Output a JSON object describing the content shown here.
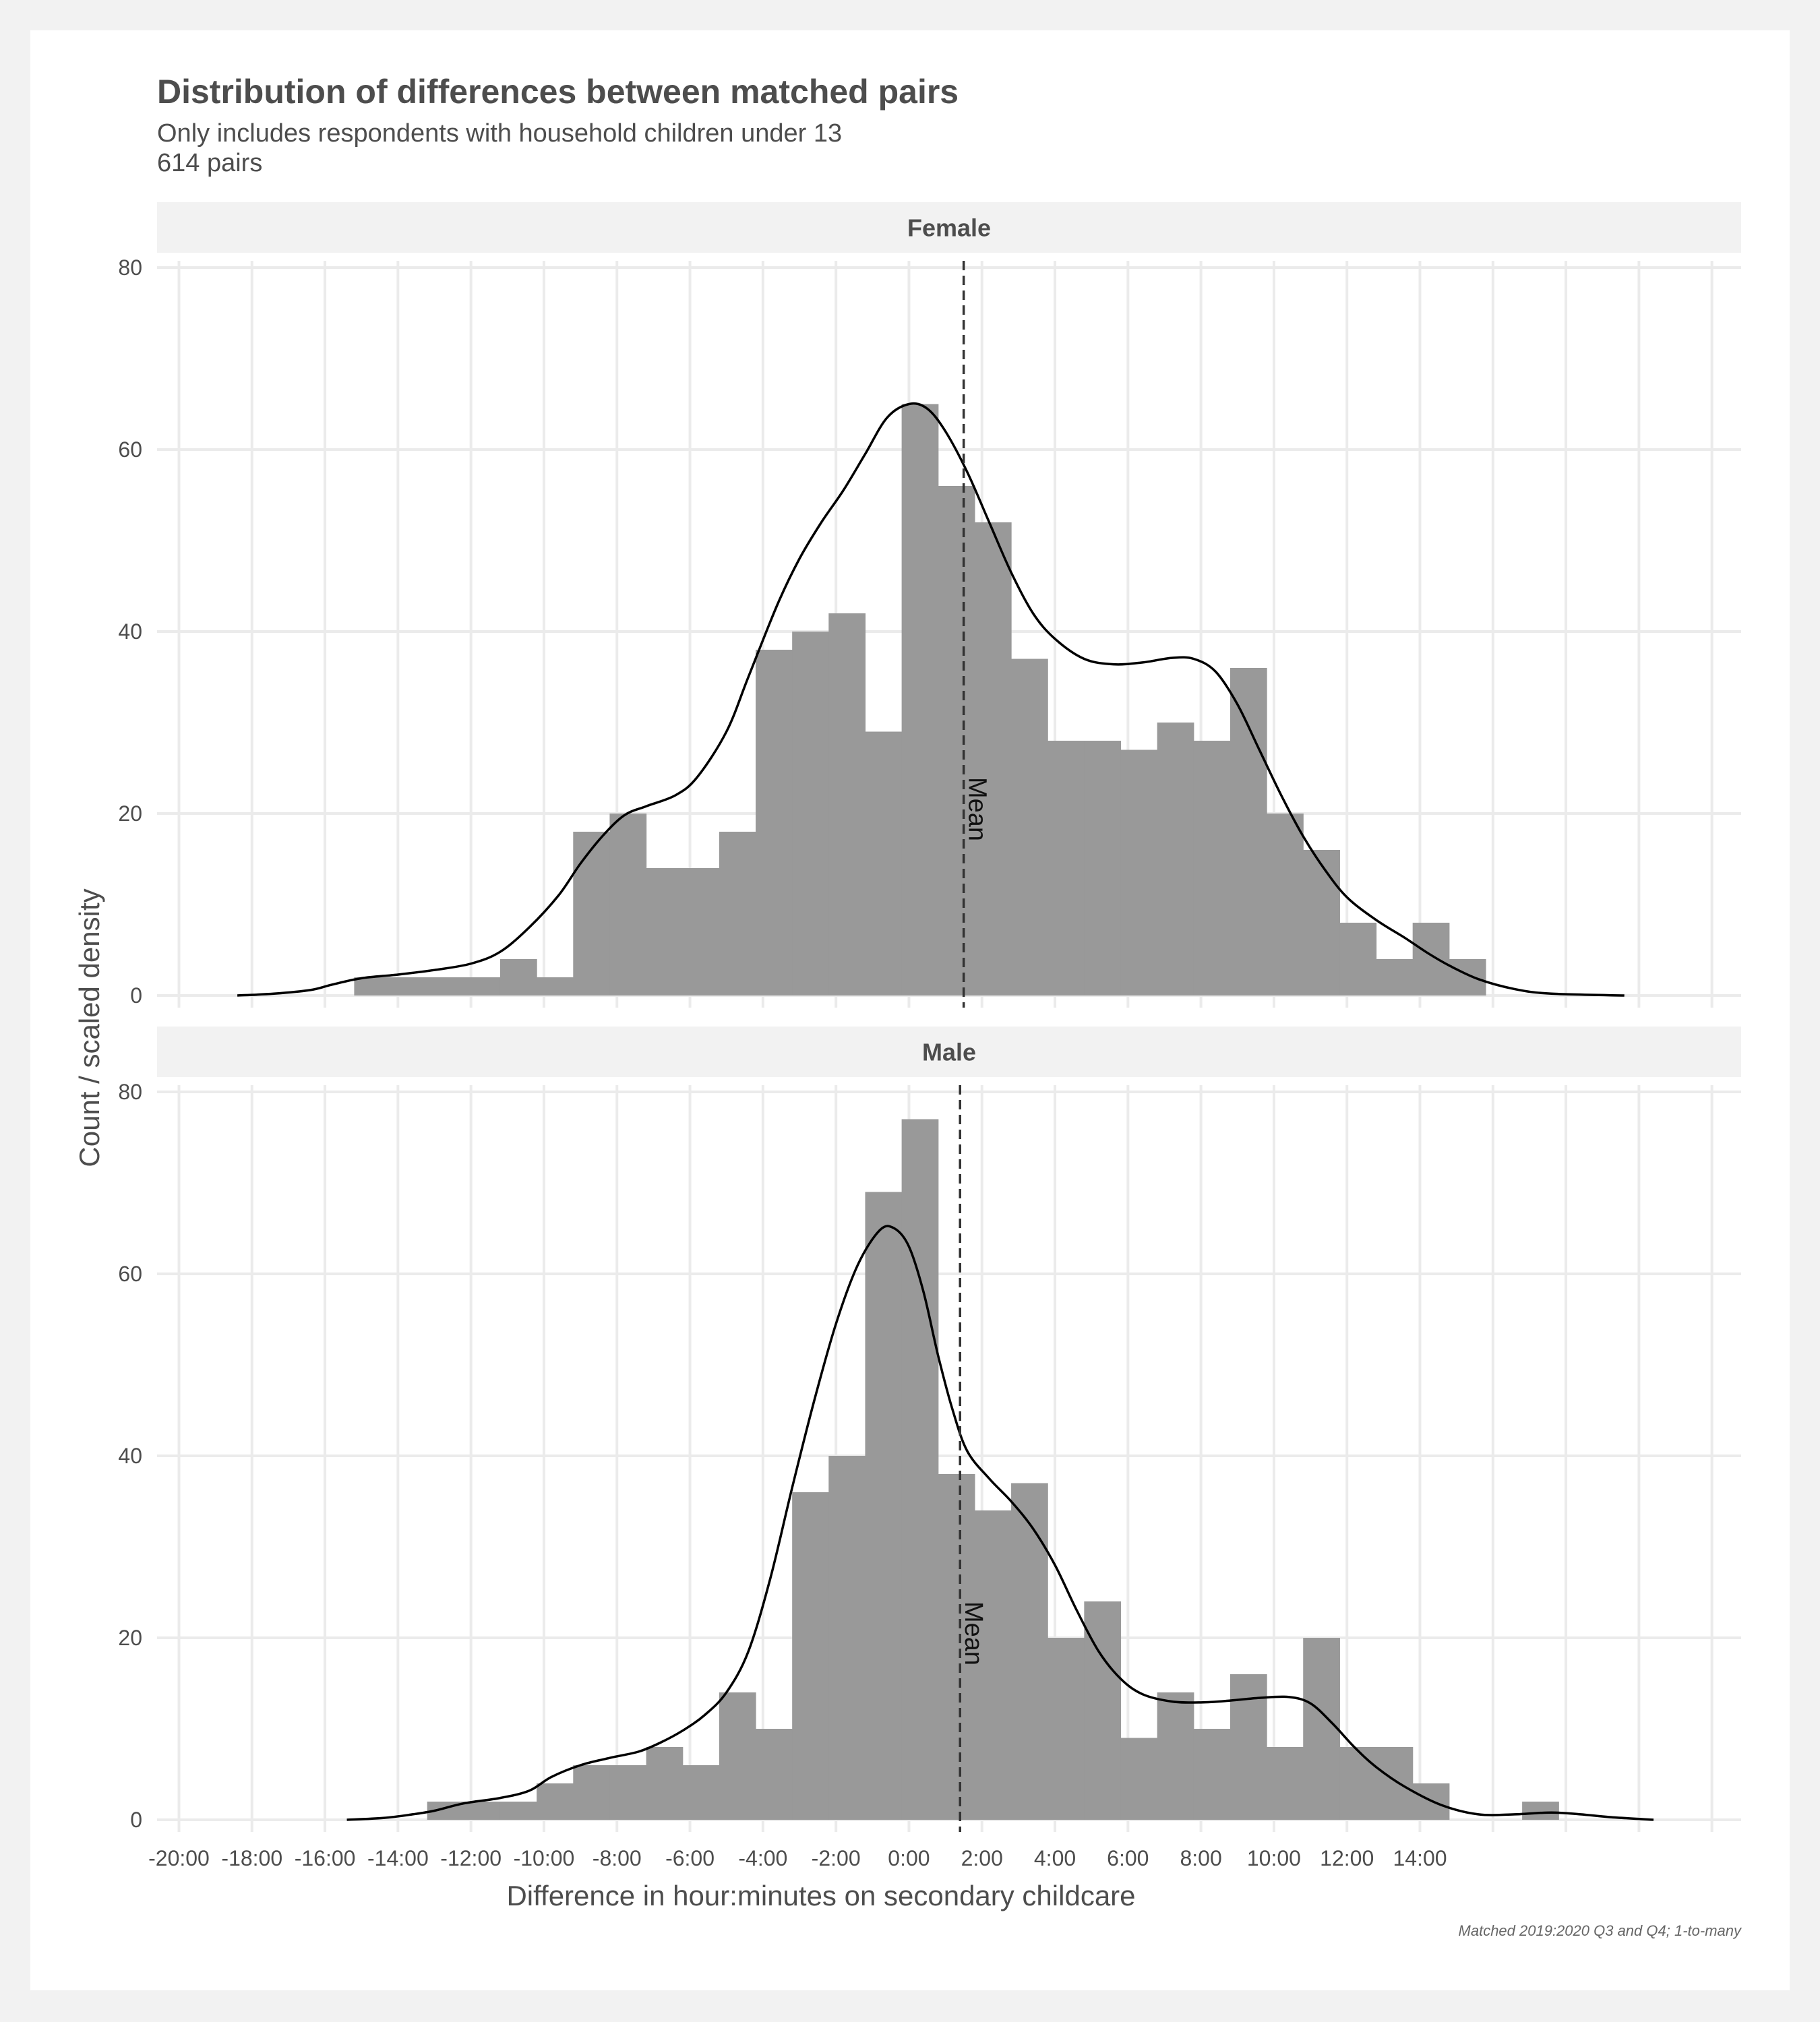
{
  "chart_data": {
    "type": "histogram",
    "title": "Distribution of differences between matched pairs",
    "subtitle_lines": [
      "Only includes respondents with household children under 13",
      "614 pairs"
    ],
    "xlabel": "Difference in hour:minutes on secondary childcare",
    "ylabel": "Count / scaled density",
    "caption": "Matched 2019:2020 Q3 and Q4; 1-to-many",
    "x_unit": "hours",
    "xlim": [
      -20.6,
      22.8
    ],
    "ylim": [
      0,
      80
    ],
    "y_ticks": [
      0,
      20,
      40,
      60,
      80
    ],
    "x_ticks": [
      {
        "value": -20,
        "label": "-20:00"
      },
      {
        "value": -18,
        "label": "-18:00"
      },
      {
        "value": -16,
        "label": "-16:00"
      },
      {
        "value": -14,
        "label": "-14:00"
      },
      {
        "value": -12,
        "label": "-12:00"
      },
      {
        "value": -10,
        "label": "-10:00"
      },
      {
        "value": -8,
        "label": "-8:00"
      },
      {
        "value": -6,
        "label": "-6:00"
      },
      {
        "value": -4,
        "label": "-4:00"
      },
      {
        "value": -2,
        "label": "-2:00"
      },
      {
        "value": 0,
        "label": "0:00"
      },
      {
        "value": 2,
        "label": "2:00"
      },
      {
        "value": 4,
        "label": "4:00"
      },
      {
        "value": 6,
        "label": "6:00"
      },
      {
        "value": 8,
        "label": "8:00"
      },
      {
        "value": 10,
        "label": "10:00"
      },
      {
        "value": 12,
        "label": "12:00"
      },
      {
        "value": 14,
        "label": "14:00"
      }
    ],
    "x_minor_ticks": [
      16,
      18,
      20,
      22
    ],
    "grid": true,
    "bar_color": "#999999",
    "mean_label": "Mean",
    "panels": [
      {
        "name": "Female",
        "mean": 1.5,
        "bins": [
          {
            "x0": -15.2,
            "x1": -14.2,
            "count": 2
          },
          {
            "x0": -14.2,
            "x1": -13.2,
            "count": 2
          },
          {
            "x0": -13.2,
            "x1": -12.2,
            "count": 2
          },
          {
            "x0": -12.2,
            "x1": -11.2,
            "count": 2
          },
          {
            "x0": -11.2,
            "x1": -10.2,
            "count": 4
          },
          {
            "x0": -10.2,
            "x1": -9.2,
            "count": 2
          },
          {
            "x0": -9.2,
            "x1": -8.2,
            "count": 18
          },
          {
            "x0": -8.2,
            "x1": -7.2,
            "count": 20
          },
          {
            "x0": -7.2,
            "x1": -6.2,
            "count": 14
          },
          {
            "x0": -6.2,
            "x1": -5.2,
            "count": 14
          },
          {
            "x0": -5.2,
            "x1": -4.2,
            "count": 18
          },
          {
            "x0": -4.2,
            "x1": -3.2,
            "count": 38
          },
          {
            "x0": -3.2,
            "x1": -2.2,
            "count": 40
          },
          {
            "x0": -2.2,
            "x1": -1.2,
            "count": 42
          },
          {
            "x0": -1.2,
            "x1": -0.2,
            "count": 29
          },
          {
            "x0": -0.2,
            "x1": 0.8,
            "count": 65
          },
          {
            "x0": 0.8,
            "x1": 1.8,
            "count": 56
          },
          {
            "x0": 1.8,
            "x1": 2.8,
            "count": 52
          },
          {
            "x0": 2.8,
            "x1": 3.8,
            "count": 37
          },
          {
            "x0": 3.8,
            "x1": 4.8,
            "count": 28
          },
          {
            "x0": 4.8,
            "x1": 5.8,
            "count": 28
          },
          {
            "x0": 5.8,
            "x1": 6.8,
            "count": 27
          },
          {
            "x0": 6.8,
            "x1": 7.8,
            "count": 30
          },
          {
            "x0": 7.8,
            "x1": 8.8,
            "count": 28
          },
          {
            "x0": 8.8,
            "x1": 9.8,
            "count": 36
          },
          {
            "x0": 9.8,
            "x1": 10.8,
            "count": 20
          },
          {
            "x0": 10.8,
            "x1": 11.8,
            "count": 16
          },
          {
            "x0": 11.8,
            "x1": 12.8,
            "count": 8
          },
          {
            "x0": 12.8,
            "x1": 13.8,
            "count": 4
          },
          {
            "x0": 13.8,
            "x1": 14.8,
            "count": 8
          },
          {
            "x0": 14.8,
            "x1": 15.8,
            "count": 4
          }
        ],
        "density": [
          [
            -18.4,
            0
          ],
          [
            -17.4,
            0.2
          ],
          [
            -16.4,
            0.6
          ],
          [
            -15.8,
            1.2
          ],
          [
            -15,
            1.9
          ],
          [
            -14,
            2.3
          ],
          [
            -13,
            2.8
          ],
          [
            -12,
            3.5
          ],
          [
            -11.2,
            4.8
          ],
          [
            -10.4,
            7.5
          ],
          [
            -9.6,
            11
          ],
          [
            -9,
            14.5
          ],
          [
            -8.4,
            17.5
          ],
          [
            -7.8,
            19.8
          ],
          [
            -7.2,
            20.8
          ],
          [
            -6.4,
            22
          ],
          [
            -5.8,
            24
          ],
          [
            -5,
            29
          ],
          [
            -4.4,
            35
          ],
          [
            -3.6,
            43
          ],
          [
            -3,
            48
          ],
          [
            -2.4,
            52
          ],
          [
            -1.8,
            55.5
          ],
          [
            -1.2,
            59.5
          ],
          [
            -0.6,
            63.5
          ],
          [
            0,
            65
          ],
          [
            0.5,
            64.5
          ],
          [
            1,
            62
          ],
          [
            1.6,
            57.5
          ],
          [
            2.2,
            52
          ],
          [
            2.8,
            46.5
          ],
          [
            3.4,
            42
          ],
          [
            4,
            39.2
          ],
          [
            4.8,
            37
          ],
          [
            5.6,
            36.4
          ],
          [
            6.4,
            36.6
          ],
          [
            7.2,
            37.1
          ],
          [
            7.8,
            37
          ],
          [
            8.4,
            35.6
          ],
          [
            9,
            32
          ],
          [
            9.6,
            27
          ],
          [
            10.2,
            22
          ],
          [
            10.8,
            17.5
          ],
          [
            11.4,
            13.8
          ],
          [
            12,
            10.8
          ],
          [
            12.8,
            8.3
          ],
          [
            13.6,
            6.3
          ],
          [
            14.2,
            4.7
          ],
          [
            14.8,
            3.3
          ],
          [
            15.6,
            1.8
          ],
          [
            16.6,
            0.7
          ],
          [
            17.6,
            0.2
          ],
          [
            19.6,
            0
          ]
        ]
      },
      {
        "name": "Male",
        "mean": 1.4,
        "bins": [
          {
            "x0": -13.2,
            "x1": -12.2,
            "count": 2
          },
          {
            "x0": -12.2,
            "x1": -11.2,
            "count": 2
          },
          {
            "x0": -11.2,
            "x1": -10.2,
            "count": 2
          },
          {
            "x0": -10.2,
            "x1": -9.2,
            "count": 4
          },
          {
            "x0": -9.2,
            "x1": -8.2,
            "count": 6
          },
          {
            "x0": -8.2,
            "x1": -7.2,
            "count": 6
          },
          {
            "x0": -7.2,
            "x1": -6.2,
            "count": 8
          },
          {
            "x0": -6.2,
            "x1": -5.2,
            "count": 6
          },
          {
            "x0": -5.2,
            "x1": -4.2,
            "count": 14
          },
          {
            "x0": -4.2,
            "x1": -3.2,
            "count": 10
          },
          {
            "x0": -3.2,
            "x1": -2.2,
            "count": 36
          },
          {
            "x0": -2.2,
            "x1": -1.2,
            "count": 40
          },
          {
            "x0": -1.2,
            "x1": -0.2,
            "count": 69
          },
          {
            "x0": -0.2,
            "x1": 0.8,
            "count": 77
          },
          {
            "x0": 0.8,
            "x1": 1.8,
            "count": 38
          },
          {
            "x0": 1.8,
            "x1": 2.8,
            "count": 34
          },
          {
            "x0": 2.8,
            "x1": 3.8,
            "count": 37
          },
          {
            "x0": 3.8,
            "x1": 4.8,
            "count": 20
          },
          {
            "x0": 4.8,
            "x1": 5.8,
            "count": 24
          },
          {
            "x0": 5.8,
            "x1": 6.8,
            "count": 9
          },
          {
            "x0": 6.8,
            "x1": 7.8,
            "count": 14
          },
          {
            "x0": 7.8,
            "x1": 8.8,
            "count": 10
          },
          {
            "x0": 8.8,
            "x1": 9.8,
            "count": 16
          },
          {
            "x0": 9.8,
            "x1": 10.8,
            "count": 8
          },
          {
            "x0": 10.8,
            "x1": 11.8,
            "count": 20
          },
          {
            "x0": 11.8,
            "x1": 12.8,
            "count": 8
          },
          {
            "x0": 12.8,
            "x1": 13.8,
            "count": 8
          },
          {
            "x0": 13.8,
            "x1": 14.8,
            "count": 4
          },
          {
            "x0": 14.8,
            "x1": 15.8,
            "count": 0
          },
          {
            "x0": 15.8,
            "x1": 16.8,
            "count": 0
          },
          {
            "x0": 16.8,
            "x1": 17.8,
            "count": 2
          }
        ],
        "density": [
          [
            -15.4,
            0
          ],
          [
            -14.4,
            0.2
          ],
          [
            -13.6,
            0.6
          ],
          [
            -13,
            1
          ],
          [
            -12.2,
            1.8
          ],
          [
            -11.2,
            2.4
          ],
          [
            -10.4,
            3.2
          ],
          [
            -9.8,
            4.7
          ],
          [
            -9,
            6
          ],
          [
            -8.2,
            6.8
          ],
          [
            -7.4,
            7.5
          ],
          [
            -6.8,
            8.5
          ],
          [
            -6.2,
            9.8
          ],
          [
            -5.6,
            11.5
          ],
          [
            -5,
            14
          ],
          [
            -4.4,
            18.5
          ],
          [
            -3.8,
            26.5
          ],
          [
            -3.2,
            36.5
          ],
          [
            -2.6,
            46
          ],
          [
            -2,
            54.5
          ],
          [
            -1.4,
            61
          ],
          [
            -0.8,
            64.8
          ],
          [
            -0.4,
            65
          ],
          [
            0,
            63
          ],
          [
            0.4,
            58
          ],
          [
            0.8,
            51
          ],
          [
            1.2,
            45
          ],
          [
            1.6,
            40.5
          ],
          [
            2.2,
            37.5
          ],
          [
            2.8,
            35
          ],
          [
            3.4,
            32
          ],
          [
            4,
            28
          ],
          [
            4.6,
            23
          ],
          [
            5.2,
            18.5
          ],
          [
            5.8,
            15.5
          ],
          [
            6.4,
            13.8
          ],
          [
            7.2,
            13
          ],
          [
            8,
            12.9
          ],
          [
            8.8,
            13.1
          ],
          [
            9.6,
            13.4
          ],
          [
            10.4,
            13.5
          ],
          [
            11,
            12.8
          ],
          [
            11.6,
            10.6
          ],
          [
            12.2,
            8
          ],
          [
            12.8,
            5.8
          ],
          [
            13.6,
            3.6
          ],
          [
            14.6,
            1.6
          ],
          [
            15.6,
            0.6
          ],
          [
            16.6,
            0.6
          ],
          [
            17.6,
            0.8
          ],
          [
            18.4,
            0.6
          ],
          [
            19.2,
            0.3
          ],
          [
            20.4,
            0
          ]
        ]
      }
    ]
  }
}
